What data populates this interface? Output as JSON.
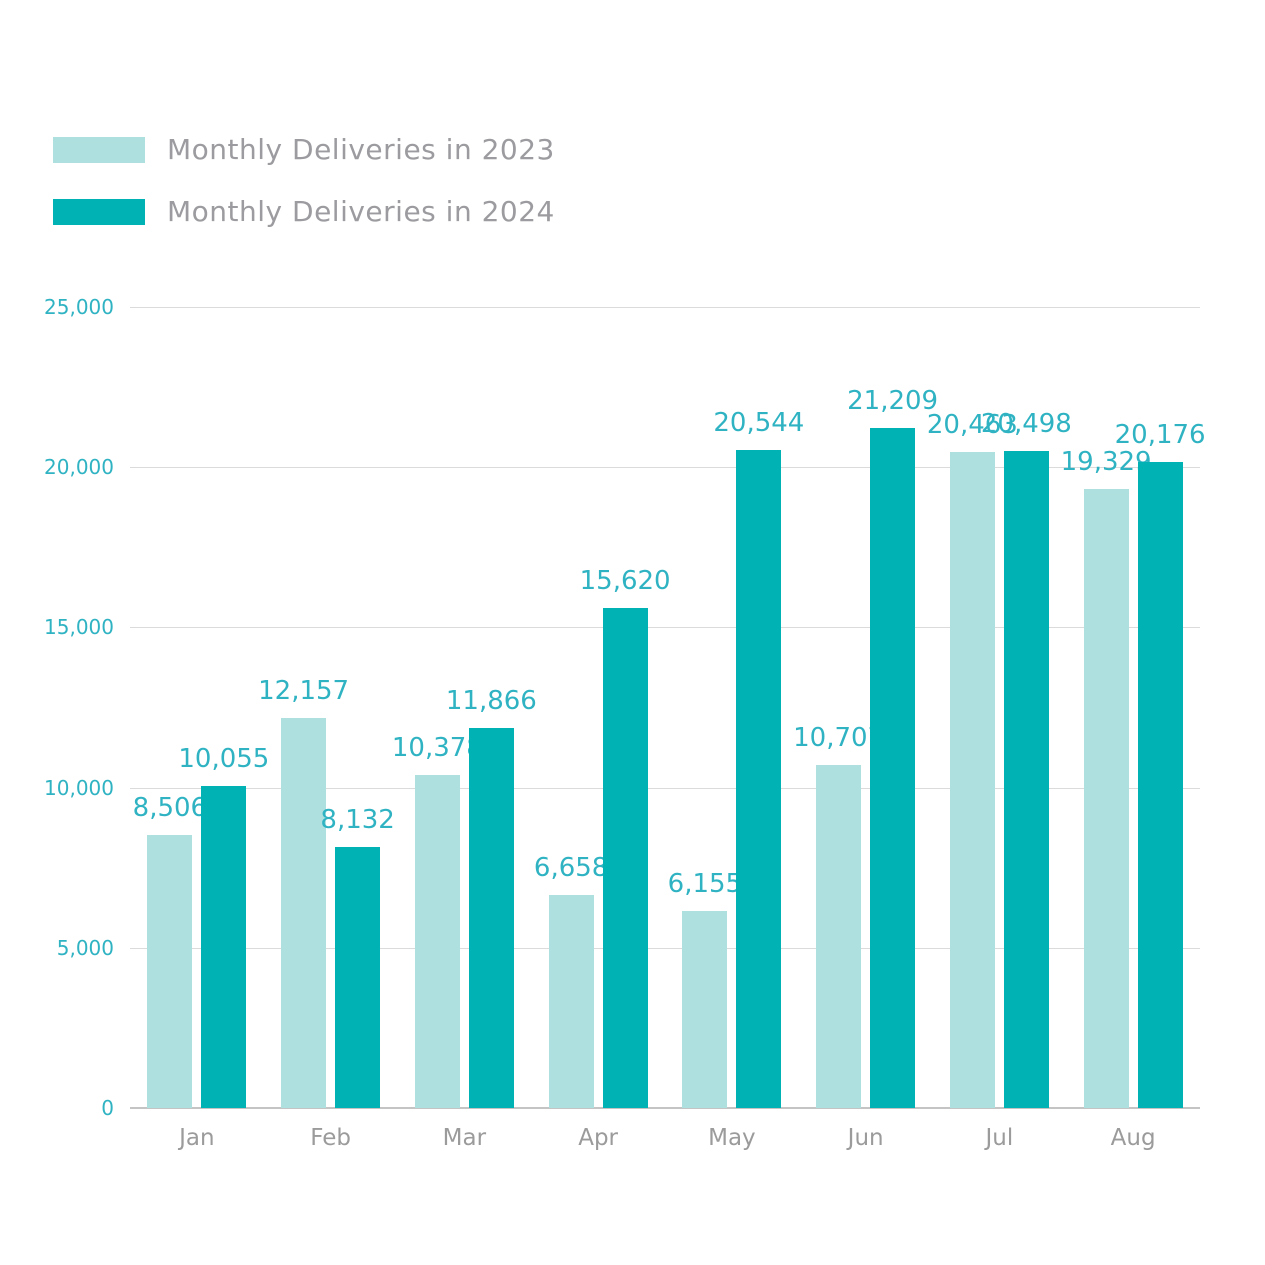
{
  "chart_data": {
    "type": "bar",
    "title": "",
    "categories": [
      "Jan",
      "Feb",
      "Mar",
      "Apr",
      "May",
      "Jun",
      "Jul",
      "Aug"
    ],
    "series": [
      {
        "name": "Monthly Deliveries in 2023",
        "color": "#aee0df",
        "values": [
          8506,
          12157,
          10378,
          6658,
          6155,
          10707,
          20463,
          19329
        ],
        "labels": [
          "8,506",
          "12,157",
          "10,378",
          "6,658",
          "6,155",
          "10,707",
          "20,463",
          "19,329"
        ]
      },
      {
        "name": "Monthly Deliveries in 2024",
        "color": "#00b2b4",
        "values": [
          10055,
          8132,
          11866,
          15620,
          20544,
          21209,
          20498,
          20176
        ],
        "labels": [
          "10,055",
          "8,132",
          "11,866",
          "15,620",
          "20,544",
          "21,209",
          "20,498",
          "20,176"
        ]
      }
    ],
    "ylim": [
      0,
      25000
    ],
    "yticks": [
      {
        "v": 0,
        "label": "0"
      },
      {
        "v": 5000,
        "label": "5,000"
      },
      {
        "v": 10000,
        "label": "10,000"
      },
      {
        "v": 15000,
        "label": "15,000"
      },
      {
        "v": 20000,
        "label": "20,000"
      },
      {
        "v": 25000,
        "label": "25,000"
      }
    ],
    "grid": true,
    "legend_position": "top-left",
    "colors": {
      "data_label": "#2fb3c3",
      "ytick_label": "#2fb3c3",
      "xtick_label": "#9b9b9b",
      "legend_text": "#9c9ca0",
      "gridline": "#dbdbdb",
      "axis_line": "#c4c4c4",
      "background": "#ffffff"
    }
  }
}
